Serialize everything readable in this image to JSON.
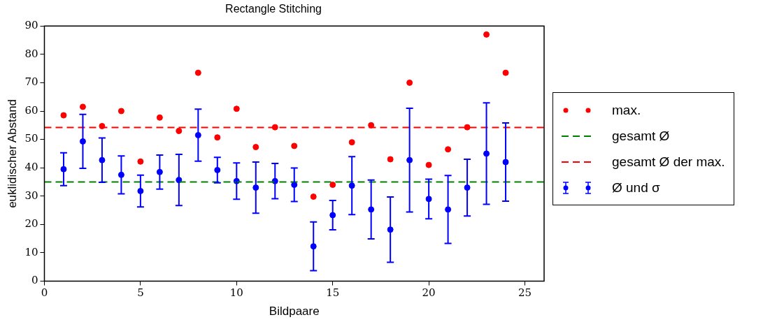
{
  "chart_data": {
    "type": "scatter",
    "title": "Rectangle Stitching",
    "xlabel": "Bildpaare",
    "ylabel": "euklidischer Abstand",
    "x": [
      1,
      2,
      3,
      4,
      5,
      6,
      7,
      8,
      9,
      10,
      11,
      12,
      13,
      14,
      15,
      16,
      17,
      18,
      19,
      20,
      21,
      22,
      23,
      24
    ],
    "series": [
      {
        "name": "max.",
        "color": "#ff0000",
        "values": [
          58.5,
          61.5,
          54.7,
          60,
          42.2,
          57.7,
          53,
          73.5,
          50.7,
          60.8,
          47.3,
          54.3,
          47.7,
          29.8,
          34,
          49,
          55,
          43,
          70,
          41,
          46.5,
          54.3,
          87,
          73.5
        ]
      },
      {
        "name": "Ø und σ",
        "color": "#0000ff",
        "values": [
          39.5,
          49.3,
          42.7,
          37.5,
          31.8,
          38.5,
          35.7,
          51.5,
          39.2,
          35.3,
          33,
          35.3,
          34,
          12.3,
          23.3,
          33.7,
          25.3,
          18.2,
          42.7,
          29,
          25.3,
          33,
          45,
          42
        ],
        "errors": [
          5.8,
          9.5,
          7.8,
          6.7,
          5.6,
          6,
          9,
          9.2,
          4.5,
          6.4,
          9,
          6.2,
          5.9,
          8.6,
          5.2,
          10.2,
          10.4,
          11.5,
          18.3,
          7,
          12,
          10,
          17.9,
          13.8
        ]
      }
    ],
    "ref_lines": [
      {
        "axis": "y",
        "value": 35,
        "label": "gesamt Ø",
        "color": "#008000",
        "line_style": "dashed"
      },
      {
        "axis": "y",
        "value": 54.2,
        "label": "gesamt Ø der max.",
        "color": "#ff0000",
        "line_style": "dashed"
      }
    ],
    "xlim": [
      0,
      26
    ],
    "xticks": [
      0,
      5,
      10,
      15,
      20,
      25
    ],
    "ylim": [
      0,
      90
    ],
    "yticks": [
      0,
      10,
      20,
      30,
      40,
      50,
      60,
      70,
      80,
      90
    ],
    "grid": false,
    "legend": "right",
    "marker": "circle"
  }
}
